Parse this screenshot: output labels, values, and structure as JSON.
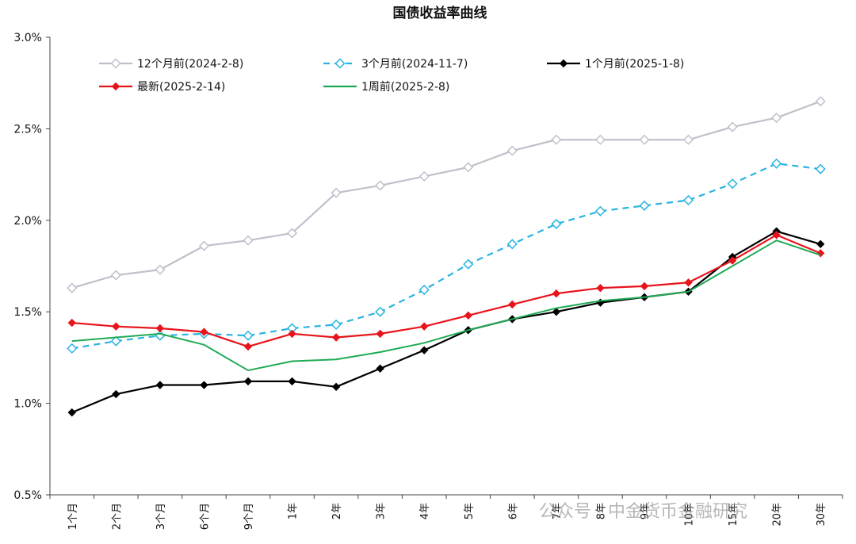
{
  "chart_data": {
    "type": "line",
    "title": "国债收益率曲线",
    "categories": [
      "1个月",
      "2个月",
      "3个月",
      "6个月",
      "9个月",
      "1年",
      "2年",
      "3年",
      "4年",
      "5年",
      "6年",
      "7年",
      "8年",
      "9年",
      "10年",
      "15年",
      "20年",
      "30年"
    ],
    "ylim": [
      0.5,
      3.0
    ],
    "yticks": [
      "0.5%",
      "1.0%",
      "1.5%",
      "2.0%",
      "2.5%",
      "3.0%"
    ],
    "ytick_values": [
      0.5,
      1.0,
      1.5,
      2.0,
      2.5,
      3.0
    ],
    "series": [
      {
        "name": "12个月前(2024-2-8)",
        "color": "#c0c0cc",
        "dash": "",
        "marker": "diamond-open",
        "values": [
          1.63,
          1.7,
          1.73,
          1.86,
          1.89,
          1.93,
          2.15,
          2.19,
          2.24,
          2.29,
          2.38,
          2.44,
          2.44,
          2.44,
          2.44,
          2.51,
          2.56,
          2.65
        ]
      },
      {
        "name": "3个月前(2024-11-7)",
        "color": "#28b4e0",
        "dash": "8,6",
        "marker": "diamond-open",
        "values": [
          1.3,
          1.34,
          1.37,
          1.38,
          1.37,
          1.41,
          1.43,
          1.5,
          1.62,
          1.76,
          1.87,
          1.98,
          2.05,
          2.08,
          2.11,
          2.2,
          2.31,
          2.28
        ]
      },
      {
        "name": "1个月前(2025-1-8)",
        "color": "#000000",
        "dash": "",
        "marker": "diamond-filled",
        "values": [
          0.95,
          1.05,
          1.1,
          1.1,
          1.12,
          1.12,
          1.09,
          1.19,
          1.29,
          1.4,
          1.46,
          1.5,
          1.55,
          1.58,
          1.61,
          1.8,
          1.94,
          1.87
        ]
      },
      {
        "name": "最新(2025-2-14)",
        "color": "#e8141c",
        "dash": "",
        "marker": "diamond-filled",
        "values": [
          1.44,
          1.42,
          1.41,
          1.39,
          1.31,
          1.38,
          1.36,
          1.38,
          1.42,
          1.48,
          1.54,
          1.6,
          1.63,
          1.64,
          1.66,
          1.78,
          1.92,
          1.82
        ]
      },
      {
        "name": "1周前(2025-2-8)",
        "color": "#1fab55",
        "dash": "",
        "marker": "none",
        "values": [
          1.34,
          1.36,
          1.38,
          1.32,
          1.18,
          1.23,
          1.24,
          1.28,
          1.33,
          1.4,
          1.46,
          1.52,
          1.56,
          1.58,
          1.61,
          1.75,
          1.89,
          1.81
        ]
      }
    ],
    "legend_position": "top-left"
  },
  "watermark": "公众号 · 中金货币金融研究"
}
